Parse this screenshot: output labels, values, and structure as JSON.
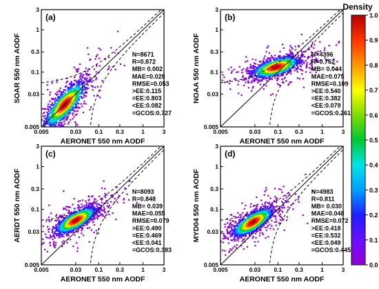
{
  "colorbar": {
    "title": "Density",
    "ticks": [
      "0.0",
      "0.1",
      "0.2",
      "0.3",
      "0.4",
      "0.5",
      "0.6",
      "0.7",
      "0.8",
      "0.9",
      "1.0"
    ],
    "colors": [
      "#9400d3",
      "#6a0dff",
      "#1e1eff",
      "#00a0ff",
      "#00e5e5",
      "#00c832",
      "#7ddc00",
      "#ffff00",
      "#ff9900",
      "#ff3300",
      "#b40000"
    ]
  },
  "chart_data": [
    {
      "type": "scatter",
      "panel": "(a)",
      "xlabel": "AERONET 550 nm AODF",
      "ylabel": "SOAR 550 nm AODF",
      "scale": "log",
      "xlim": [
        0.005,
        3
      ],
      "ylim": [
        0.005,
        3
      ],
      "xticks": [
        "0.005",
        "0.03",
        "0.1",
        "0.3",
        "1",
        "3"
      ],
      "yticks": [
        "0.005",
        "0.03",
        "0.1",
        "0.3",
        "1",
        "3"
      ],
      "ee_visible": "full",
      "cluster": {
        "x": 0.017,
        "y": 0.017,
        "spread_x": 0.22,
        "spread_y": 0.26,
        "rho": 0.8
      },
      "stats": [
        "N=8671",
        "R=0.872",
        "MB= 0.002",
        "MAE=0.028",
        "RMSE=0.053",
        ">EE:0.115",
        "=EE:0.803",
        "<EE:0.082",
        "=GCOS:0.727"
      ]
    },
    {
      "type": "scatter",
      "panel": "(b)",
      "xlabel": "AERONET 550 nm AODF",
      "ylabel": "NOAA 550 nm AODF",
      "scale": "log",
      "xlim": [
        0.005,
        3
      ],
      "ylim": [
        0.005,
        3
      ],
      "xticks": [
        "0.005",
        "0.03",
        "0.1",
        "0.3",
        "1",
        "3"
      ],
      "yticks": [
        "0.005",
        "0.03",
        "0.1",
        "0.3",
        "1",
        "3"
      ],
      "ee_visible": "upper",
      "cluster": {
        "x": 0.09,
        "y": 0.13,
        "spread_x": 0.26,
        "spread_y": 0.12,
        "rho": 0.6
      },
      "stats": [
        "N=4396",
        "R=0.762",
        "MB= 0.044",
        "MAE=0.075",
        "RMSE=0.109",
        ">EE:0.540",
        "=EE:0.382",
        "<EE:0.079",
        "=GCOS:0.261"
      ]
    },
    {
      "type": "scatter",
      "panel": "(c)",
      "xlabel": "AERONET 550 nm AODF",
      "ylabel": "AERDT 550 nm AODF",
      "scale": "log",
      "xlim": [
        0.005,
        3
      ],
      "ylim": [
        0.005,
        3
      ],
      "xticks": [
        "0.005",
        "0.03",
        "0.1",
        "0.3",
        "1",
        "3"
      ],
      "yticks": [
        "0.005",
        "0.03",
        "0.1",
        "0.3",
        "1",
        "3"
      ],
      "ee_visible": "upper",
      "cluster": {
        "x": 0.03,
        "y": 0.055,
        "spread_x": 0.22,
        "spread_y": 0.15,
        "rho": 0.75
      },
      "stats": [
        "N=8093",
        "R=0.848",
        "MB= 0.039",
        "MAE=0.055",
        "RMSE=0.079",
        ">EE:0.490",
        "=EE:0.469",
        "<EE:0.041",
        "=GCOS:0.383"
      ]
    },
    {
      "type": "scatter",
      "panel": "(d)",
      "xlabel": "AERONET 550 nm AODF",
      "ylabel": "MYD04 550 nm AODF",
      "scale": "log",
      "xlim": [
        0.005,
        3
      ],
      "ylim": [
        0.005,
        3
      ],
      "xticks": [
        "0.005",
        "0.03",
        "0.1",
        "0.3",
        "1",
        "3"
      ],
      "yticks": [
        "0.005",
        "0.03",
        "0.1",
        "0.3",
        "1",
        "3"
      ],
      "ee_visible": "upper",
      "cluster": {
        "x": 0.027,
        "y": 0.05,
        "spread_x": 0.22,
        "spread_y": 0.16,
        "rho": 0.75
      },
      "stats": [
        "N=4983",
        "R=0.811",
        "MB= 0.030",
        "MAE=0.048",
        "RMSE=0.072",
        ">EE:0.418",
        "=EE:0.532",
        "<EE:0.049",
        "=GCOS:0.445"
      ]
    }
  ]
}
